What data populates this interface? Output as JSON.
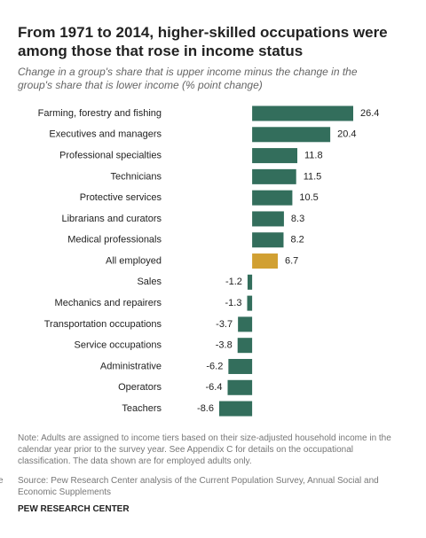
{
  "chart_data": {
    "type": "bar",
    "orientation": "horizontal",
    "title": "From 1971 to 2014, higher-skilled occupations were among those that rose in income status",
    "subtitle": "Change in a group's share that is upper income minus the change in the group's share that is lower income (% point change)",
    "categories": [
      "Farming, forestry and fishing",
      "Executives and managers",
      "Professional specialties",
      "Technicians",
      "Protective services",
      "Librarians and curators",
      "Medical professionals",
      "All employed",
      "Sales",
      "Mechanics and repairers",
      "Transportation occupations",
      "Service occupations",
      "Administrative",
      "Operators",
      "Teachers"
    ],
    "values": [
      26.4,
      20.4,
      11.8,
      11.5,
      10.5,
      8.3,
      8.2,
      6.7,
      -1.2,
      -1.3,
      -3.7,
      -3.8,
      -6.2,
      -6.4,
      -8.6
    ],
    "colors": [
      "#336e5c",
      "#336e5c",
      "#336e5c",
      "#336e5c",
      "#336e5c",
      "#336e5c",
      "#336e5c",
      "#d1a032",
      "#336e5c",
      "#336e5c",
      "#336e5c",
      "#336e5c",
      "#336e5c",
      "#336e5c",
      "#336e5c"
    ],
    "note": "Note: Adults are assigned to income tiers based on their size-adjusted household income in the calendar year prior to the survey year. See Appendix C for details on the occupational classification. The data shown are for employed adults only.",
    "source": "Source: Pew Research Center analysis of the Current Population Survey, Annual Social and Economic Supplements",
    "credit": "PEW RESEARCH CENTER",
    "fragment": "e"
  }
}
